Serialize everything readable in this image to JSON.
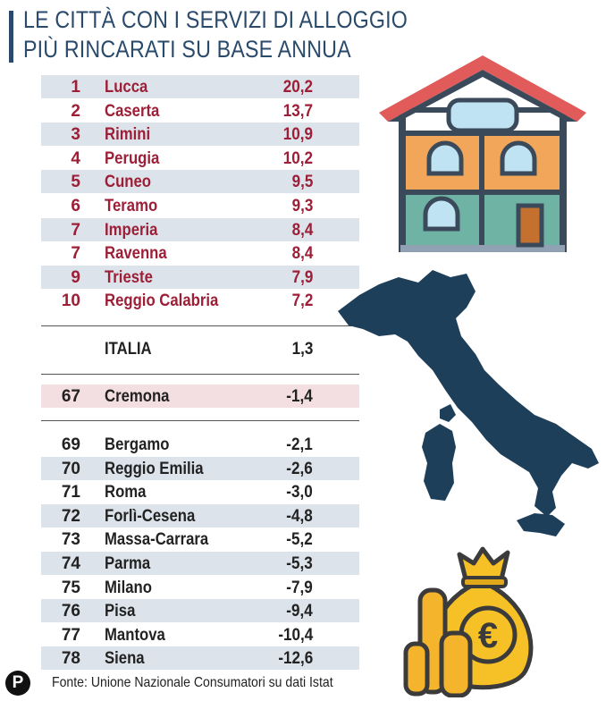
{
  "title_lines": [
    "LE CITTÀ CON I SERVIZI DI ALLOGGIO",
    "PIÙ RINCARATI SU BASE ANNUA"
  ],
  "source": "Fonte: Unione Nazionale Consumatori su dati Istat",
  "logo_letter": "P",
  "colors": {
    "title": "#2a4a6b",
    "top_rows": "#9c1f37",
    "other_rows": "#222222",
    "shade": "#dde3ea",
    "highlight": "#f3dee1"
  },
  "chart_data": {
    "type": "table",
    "title": "LE CITTÀ CON I SERVIZI DI ALLOGGIO PIÙ RINCARATI SU BASE ANNUA",
    "top": [
      {
        "rank": "1",
        "city": "Lucca",
        "value": "20,2"
      },
      {
        "rank": "2",
        "city": "Caserta",
        "value": "13,7"
      },
      {
        "rank": "3",
        "city": "Rimini",
        "value": "10,9"
      },
      {
        "rank": "4",
        "city": "Perugia",
        "value": "10,2"
      },
      {
        "rank": "5",
        "city": "Cuneo",
        "value": "9,5"
      },
      {
        "rank": "6",
        "city": "Teramo",
        "value": "9,3"
      },
      {
        "rank": "7",
        "city": "Imperia",
        "value": "8,4"
      },
      {
        "rank": "7",
        "city": "Ravenna",
        "value": "8,4"
      },
      {
        "rank": "9",
        "city": "Trieste",
        "value": "7,9"
      },
      {
        "rank": "10",
        "city": "Reggio Calabria",
        "value": "7,2"
      }
    ],
    "national": {
      "rank": "",
      "city": "ITALIA",
      "value": "1,3"
    },
    "highlight": {
      "rank": "67",
      "city": "Cremona",
      "value": "-1,4"
    },
    "bottom": [
      {
        "rank": "69",
        "city": "Bergamo",
        "value": "-2,1"
      },
      {
        "rank": "70",
        "city": "Reggio Emilia",
        "value": "-2,6"
      },
      {
        "rank": "71",
        "city": "Roma",
        "value": "-3,0"
      },
      {
        "rank": "72",
        "city": "Forlì-Cesena",
        "value": "-4,8"
      },
      {
        "rank": "73",
        "city": "Massa-Carrara",
        "value": "-5,2"
      },
      {
        "rank": "74",
        "city": "Parma",
        "value": "-5,3"
      },
      {
        "rank": "75",
        "city": "Milano",
        "value": "-7,9"
      },
      {
        "rank": "76",
        "city": "Pisa",
        "value": "-9,4"
      },
      {
        "rank": "77",
        "city": "Mantova",
        "value": "-10,4"
      },
      {
        "rank": "78",
        "city": "Siena",
        "value": "-12,6"
      }
    ]
  }
}
